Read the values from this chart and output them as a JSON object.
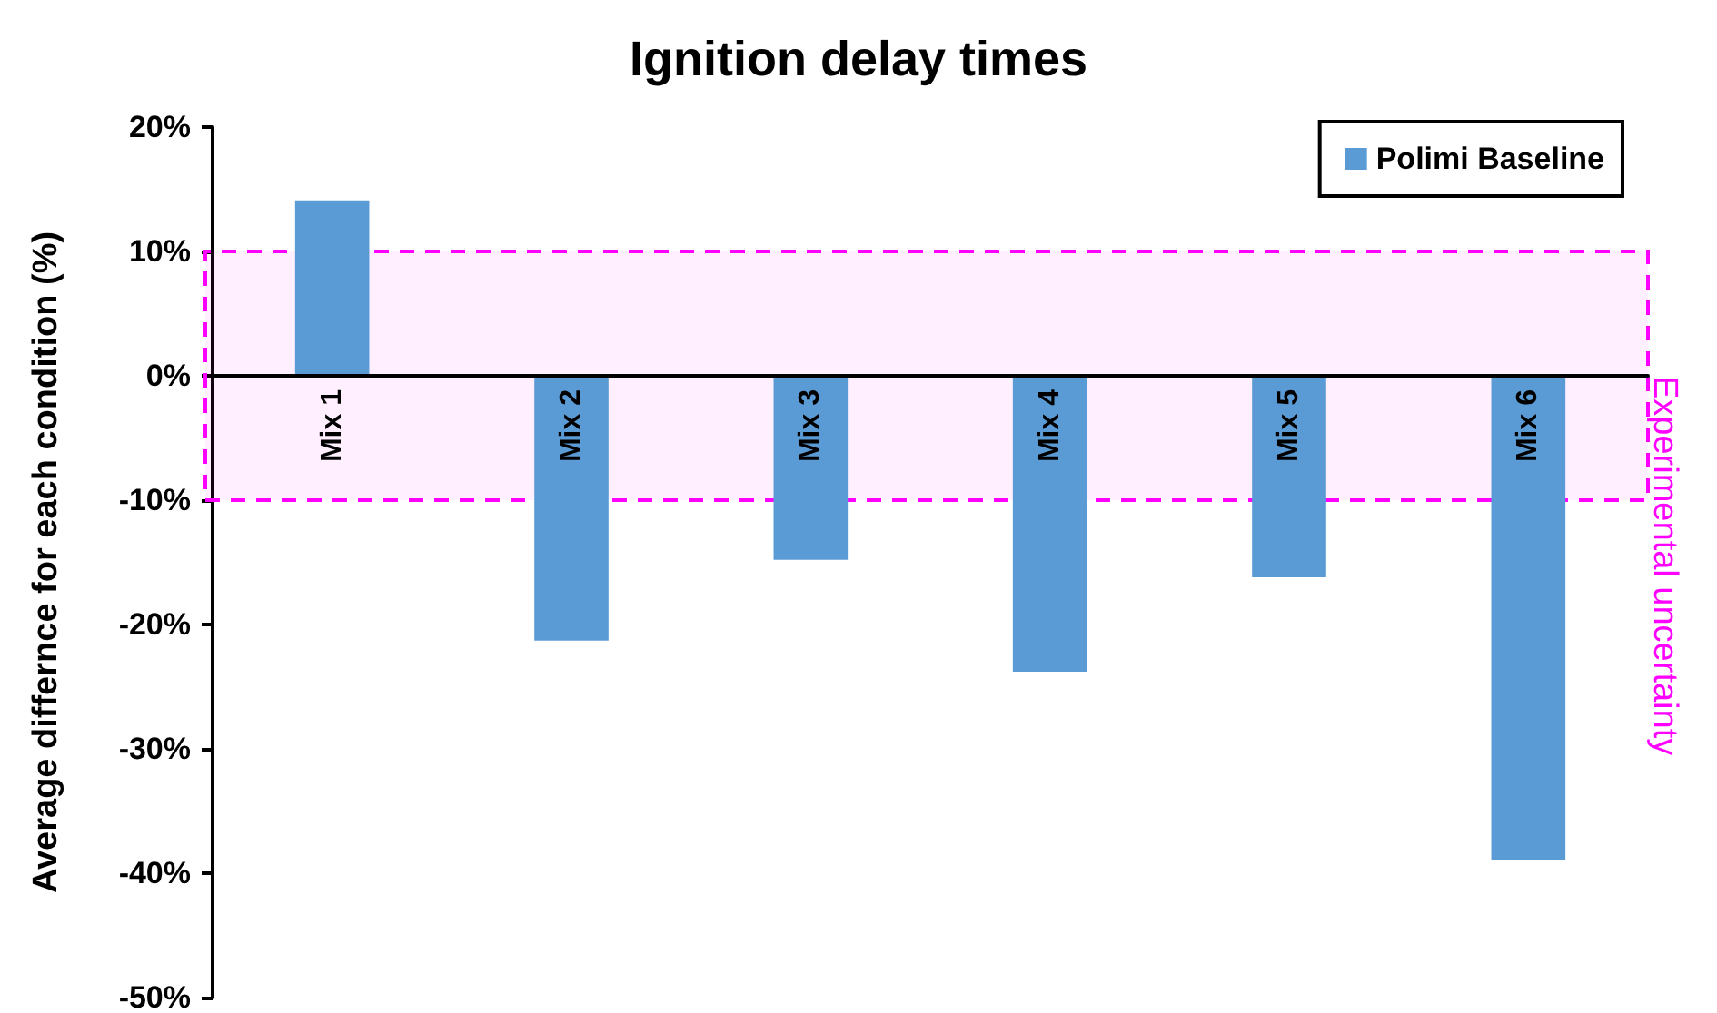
{
  "chart_data": {
    "type": "bar",
    "title": "Ignition delay times",
    "ylabel": "Average differnce for each condition (%)",
    "categories": [
      "Mix 1",
      "Mix 2",
      "Mix 3",
      "Mix 4",
      "Mix 5",
      "Mix 6"
    ],
    "series": [
      {
        "name": "Polimi Baseline",
        "color": "#5b9bd5",
        "values": [
          14.1,
          -21.3,
          -14.8,
          -23.8,
          -16.2,
          -38.9
        ]
      }
    ],
    "ylim": [
      -50,
      20
    ],
    "yticks": [
      {
        "value": -50,
        "label": "-50%"
      },
      {
        "value": -40,
        "label": "-40%"
      },
      {
        "value": -30,
        "label": "-30%"
      },
      {
        "value": -20,
        "label": "-20%"
      },
      {
        "value": -10,
        "label": "-10%"
      },
      {
        "value": 0,
        "label": "0%"
      },
      {
        "value": 10,
        "label": "10%"
      },
      {
        "value": 20,
        "label": "20%"
      }
    ],
    "bands": [
      {
        "axis": "y",
        "from": -10,
        "to": 10,
        "label": "Experimental uncertainty",
        "color": "#ff00ff"
      }
    ],
    "grid": false,
    "legend": "top right"
  }
}
